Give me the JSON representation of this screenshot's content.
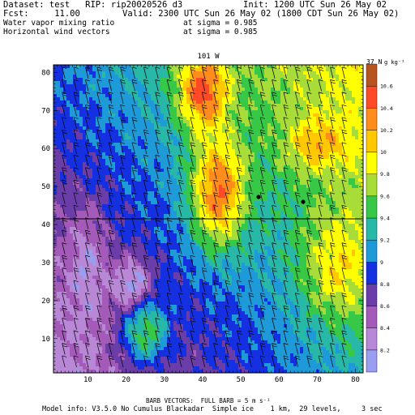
{
  "header": {
    "dataset_line": "Dataset: test   RIP: rip20020526 d3",
    "init_line": "Init: 1200 UTC Sun 26 May 02",
    "fcst_line": "Fcst:     11.00",
    "valid_line": "Valid: 2300 UTC Sun 26 May 02 (1800 CDT Sun 26 May 02)",
    "field1_name": "Water vapor mixing ratio",
    "field1_level": "at sigma = 0.985",
    "field2_name": "Horizontal wind vectors",
    "field2_level": "at sigma = 0.985"
  },
  "plot": {
    "top_label_left": "101 W",
    "top_label_right": "37 N",
    "x_ticks": [
      "10",
      "20",
      "30",
      "40",
      "50",
      "60",
      "70",
      "80"
    ],
    "y_ticks": [
      "10",
      "20",
      "30",
      "40",
      "50",
      "60",
      "70",
      "80"
    ]
  },
  "colorbar": {
    "unit": "g kg⁻¹",
    "labels": [
      "8.2",
      "8.4",
      "8.6",
      "8.8",
      "9",
      "9.2",
      "9.4",
      "9.6",
      "9.8",
      "10",
      "10.2",
      "10.4",
      "10.6"
    ],
    "colors": [
      "#9a9ef0",
      "#b888d6",
      "#a45ab8",
      "#6a3da8",
      "#1430e0",
      "#1e9ad8",
      "#28b8a8",
      "#38c848",
      "#a8dc38",
      "#ffff00",
      "#ffc800",
      "#ff8c1c",
      "#ff4a28",
      "#b85420"
    ]
  },
  "footer": {
    "barb_line": "BARB VECTORS:  FULL BARB = 5 m s⁻¹",
    "model_line": "Model info: V3.5.0 No Cumulus Blackadar  Simple ice    1 km,  29 levels,     3 sec"
  }
}
